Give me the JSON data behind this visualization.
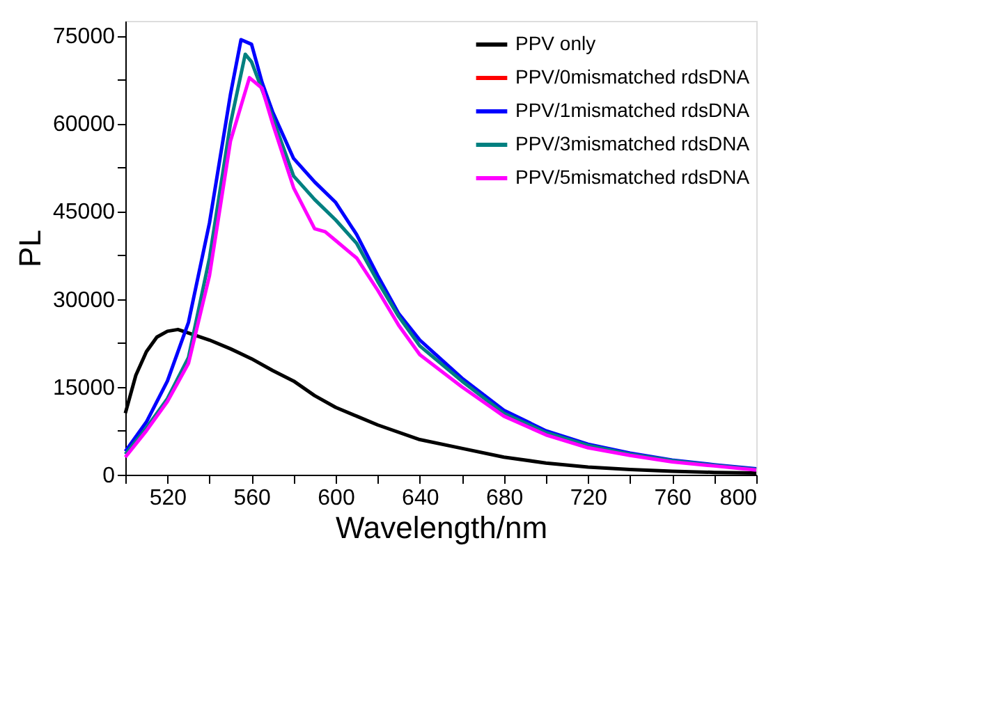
{
  "chart_data": {
    "type": "line",
    "xlabel": "Wavelength/nm",
    "ylabel": "PL",
    "xlim": [
      500,
      800
    ],
    "ylim": [
      0,
      77500
    ],
    "xticks": [
      {
        "value": 500,
        "label": null
      },
      520,
      {
        "value": 540,
        "label": null
      },
      560,
      {
        "value": 580,
        "label": null
      },
      600,
      {
        "value": 620,
        "label": null
      },
      640,
      {
        "value": 660,
        "label": null
      },
      680,
      {
        "value": 700,
        "label": null
      },
      720,
      {
        "value": 740,
        "label": null
      },
      760,
      {
        "value": 780,
        "label": null
      },
      800
    ],
    "yticks": [
      0,
      {
        "value": 7500,
        "label": null
      },
      15000,
      {
        "value": 22500,
        "label": null
      },
      30000,
      {
        "value": 37500,
        "label": null
      },
      45000,
      {
        "value": 52500,
        "label": null
      },
      60000,
      {
        "value": 67500,
        "label": null
      },
      75000
    ],
    "grid": false,
    "legend": "top right",
    "line_style": "solid",
    "marker": "none",
    "series": [
      {
        "name": "PPV only",
        "color": "#000000",
        "x": [
          500,
          505,
          510,
          515,
          520,
          525,
          530,
          540,
          550,
          560,
          570,
          580,
          590,
          600,
          610,
          620,
          640,
          660,
          680,
          700,
          720,
          740,
          760,
          780,
          800
        ],
        "values": [
          10500,
          17000,
          21000,
          23500,
          24500,
          24800,
          24200,
          23000,
          21500,
          19800,
          17800,
          16000,
          13500,
          11500,
          10000,
          8500,
          6000,
          4500,
          3000,
          2000,
          1300,
          900,
          600,
          400,
          300
        ]
      },
      {
        "name": "PPV/0mismatched rdsDNA",
        "color": "#ff0000"
      },
      {
        "name": "PPV/1mismatched rdsDNA",
        "color": "#0000ff",
        "x": [
          500,
          510,
          520,
          530,
          540,
          550,
          555,
          560,
          565,
          570,
          580,
          590,
          600,
          610,
          620,
          630,
          640,
          660,
          680,
          700,
          720,
          740,
          760,
          780,
          800
        ],
        "values": [
          4000,
          9000,
          16000,
          26000,
          43000,
          65000,
          74300,
          73500,
          67000,
          62000,
          54000,
          50000,
          46500,
          41000,
          34000,
          27500,
          23000,
          16500,
          11000,
          7500,
          5200,
          3700,
          2500,
          1700,
          1000
        ]
      },
      {
        "name": "PPV/3mismatched rdsDNA",
        "color": "#008080",
        "x": [
          500,
          510,
          520,
          530,
          540,
          550,
          557,
          560,
          570,
          580,
          590,
          600,
          610,
          620,
          630,
          640,
          660,
          680,
          700,
          720,
          740,
          760,
          780,
          800
        ],
        "values": [
          3500,
          8000,
          13000,
          20000,
          37000,
          60000,
          71800,
          70500,
          61000,
          51000,
          47000,
          43500,
          39500,
          33000,
          27000,
          22000,
          16000,
          10500,
          7200,
          5000,
          3500,
          2400,
          1600,
          900
        ]
      },
      {
        "name": "PPV/5mismatched rdsDNA",
        "color": "#ff00ff",
        "x": [
          500,
          510,
          520,
          530,
          540,
          550,
          559,
          565,
          570,
          580,
          590,
          595,
          600,
          610,
          620,
          630,
          640,
          660,
          680,
          700,
          720,
          740,
          760,
          780,
          800
        ],
        "values": [
          3000,
          7500,
          12500,
          19000,
          34000,
          57000,
          67800,
          66000,
          60000,
          49000,
          42000,
          41500,
          40000,
          37000,
          31500,
          25500,
          20500,
          15000,
          10000,
          6800,
          4600,
          3300,
          2200,
          1500,
          800
        ]
      }
    ]
  }
}
